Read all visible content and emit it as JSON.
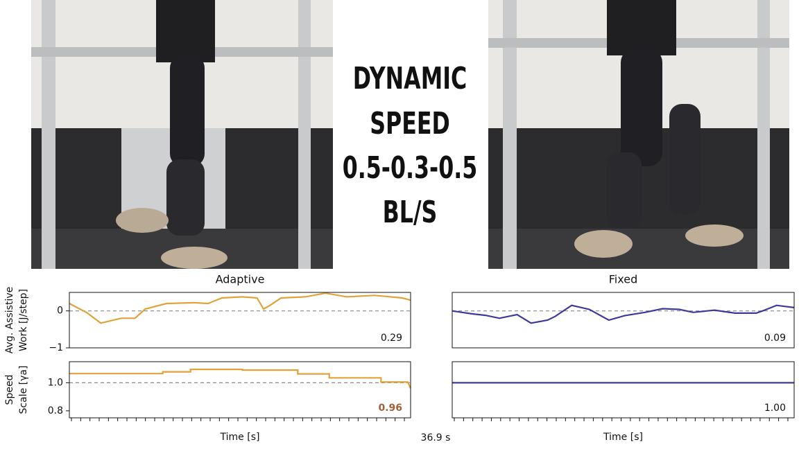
{
  "overlay_text": [
    "DYNAMIC",
    "SPEED",
    "0.5-0.3-0.5",
    "BL/S"
  ],
  "elapsed": "36.9 s",
  "chart_data": [
    {
      "type": "line",
      "title": "Adaptive",
      "ylabel": [
        "Avg. Assistive",
        "Work [J/step]"
      ],
      "xlim": [
        0,
        36.9
      ],
      "ylim": [
        -1,
        0.5
      ],
      "yticks": [
        {
          "value": -1,
          "label": "−1"
        },
        0
      ],
      "hline": 0,
      "series": [
        {
          "name": "Adaptive",
          "color": "#e0a33a",
          "x": [
            0,
            1.9,
            3.4,
            5.6,
            7.1,
            8.2,
            10.5,
            13.5,
            15.0,
            16.5,
            18.7,
            20.3,
            21.0,
            21.7,
            22.9,
            25.5,
            27.7,
            30.0,
            33.0,
            36.0,
            36.9
          ],
          "values": [
            0.2,
            -0.05,
            -0.33,
            -0.2,
            -0.2,
            0.05,
            0.2,
            0.22,
            0.2,
            0.35,
            0.38,
            0.35,
            0.05,
            0.15,
            0.35,
            0.38,
            0.48,
            0.38,
            0.42,
            0.35,
            0.29
          ],
          "value_labels": [
            null,
            null,
            null,
            null,
            null,
            null,
            null,
            null,
            null,
            null,
            null,
            null,
            null,
            null,
            null,
            null,
            null,
            null,
            null,
            null,
            "0.29"
          ]
        }
      ]
    },
    {
      "type": "line",
      "title": "Fixed",
      "xlim": [
        0,
        36.9
      ],
      "ylim": [
        -1,
        0.5
      ],
      "hline": 0,
      "series": [
        {
          "name": "Fixed",
          "color": "#3f3a9a",
          "x": [
            0,
            2.1,
            3.6,
            5.1,
            7.0,
            8.5,
            10.3,
            11.1,
            12.9,
            14.8,
            16.9,
            18.6,
            20.8,
            22.7,
            24.5,
            26.0,
            28.3,
            30.5,
            32.8,
            33.5,
            35.0,
            36.9
          ],
          "values": [
            0,
            -0.08,
            -0.12,
            -0.2,
            -0.1,
            -0.33,
            -0.25,
            -0.15,
            0.15,
            0.04,
            -0.25,
            -0.13,
            -0.04,
            0.06,
            0.04,
            -0.04,
            0.02,
            -0.06,
            -0.06,
            0,
            0.15,
            0.09
          ],
          "value_labels": [
            null,
            null,
            null,
            null,
            null,
            null,
            null,
            null,
            null,
            null,
            null,
            null,
            null,
            null,
            null,
            null,
            null,
            null,
            null,
            null,
            null,
            "0.09"
          ]
        }
      ]
    },
    {
      "type": "line",
      "ylabel": [
        "Speed",
        "Scale [γa]"
      ],
      "xlabel": "Time [s]",
      "xlim": [
        0,
        36.9
      ],
      "ylim": [
        0.75,
        1.15
      ],
      "yticks": [
        {
          "value": 0.8,
          "label": "0.8"
        },
        {
          "value": 1,
          "label": "1.0"
        }
      ],
      "hline": 1,
      "xticks": [
        0,
        1,
        2,
        3,
        4,
        5,
        6,
        7,
        8,
        9,
        10,
        11,
        12,
        13,
        14,
        15,
        16,
        17,
        18,
        19,
        20,
        21,
        22,
        23,
        24,
        25,
        26,
        27,
        28,
        29,
        30,
        31,
        32,
        33,
        34,
        35,
        36
      ],
      "label_color": "#a0603a",
      "series": [
        {
          "name": "Adaptive",
          "color": "#e0a33a",
          "x": [
            0,
            10.1,
            10.1,
            13.1,
            13.1,
            18.7,
            18.7,
            24.7,
            24.7,
            28.1,
            28.1,
            33.7,
            33.7,
            36.6,
            36.9
          ],
          "values": [
            1.065,
            1.065,
            1.078,
            1.078,
            1.095,
            1.095,
            1.09,
            1.09,
            1.063,
            1.063,
            1.035,
            1.035,
            1.005,
            1.005,
            0.96
          ],
          "value_labels": [
            null,
            null,
            null,
            null,
            null,
            null,
            null,
            null,
            null,
            null,
            null,
            null,
            null,
            null,
            "0.96"
          ]
        }
      ]
    },
    {
      "type": "line",
      "xlabel": "Time [s]",
      "xlim": [
        0,
        36.9
      ],
      "ylim": [
        0.75,
        1.15
      ],
      "hline": 1,
      "xticks": [
        0,
        1,
        2,
        3,
        4,
        5,
        6,
        7,
        8,
        9,
        10,
        11,
        12,
        13,
        14,
        15,
        16,
        17,
        18,
        19,
        20,
        21,
        22,
        23,
        24,
        25,
        26,
        27,
        28,
        29,
        30,
        31,
        32,
        33,
        34,
        35,
        36
      ],
      "series": [
        {
          "name": "Fixed",
          "color": "#3f3a9a",
          "x": [
            0,
            36.9
          ],
          "values": [
            1,
            1
          ],
          "value_labels": [
            null,
            "1.00"
          ]
        }
      ]
    }
  ]
}
